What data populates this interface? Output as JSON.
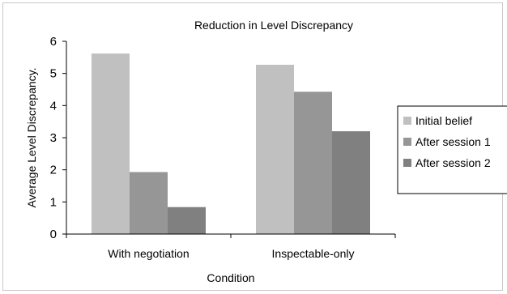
{
  "chart_data": {
    "type": "bar",
    "title": "Reduction in Level Discrepancy",
    "xlabel": "Condition",
    "ylabel": "Average Level Discrepancy.",
    "categories": [
      "With negotiation",
      "Inspectable-only"
    ],
    "series": [
      {
        "name": "Initial belief",
        "color": "#c0c0c0",
        "values": [
          5.62,
          5.27
        ]
      },
      {
        "name": "After session 1",
        "color": "#969696",
        "values": [
          1.93,
          4.43
        ]
      },
      {
        "name": "After session 2",
        "color": "#808080",
        "values": [
          0.84,
          3.2
        ]
      }
    ],
    "ylim": [
      0,
      6
    ],
    "yticks": [
      "0",
      "1",
      "2",
      "3",
      "4",
      "5",
      "6"
    ],
    "grid": false,
    "legend_position": "right"
  }
}
